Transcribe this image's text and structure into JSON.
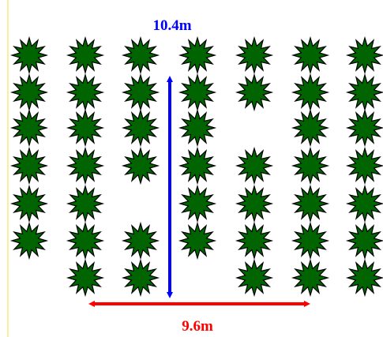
{
  "measurements": {
    "vertical": "10.4m",
    "horizontal": "9.6m"
  }
}
